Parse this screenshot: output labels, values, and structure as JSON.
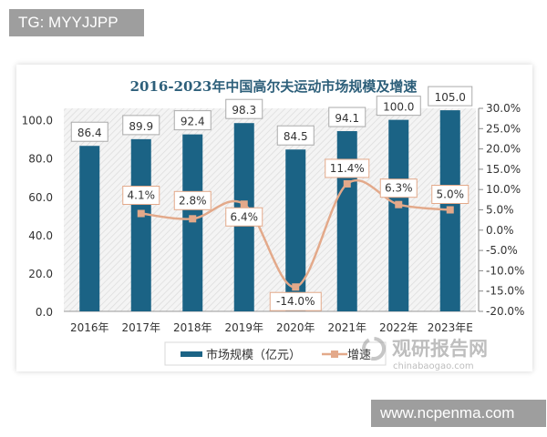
{
  "watermark_top": "TG: MYYJJPP",
  "watermark_bottom": "www.ncpenma.com",
  "brand_logo": {
    "name": "观研报告网",
    "url_text": "chinabaogao.com"
  },
  "colors": {
    "bar": "#1b6385",
    "line": "#e3a98a",
    "title": "#2d5f7a"
  },
  "chart_data": {
    "type": "bar+line",
    "title": "2016-2023年中国高尔夫运动市场规模及增速",
    "categories": [
      "2016年",
      "2017年",
      "2018年",
      "2019年",
      "2020年",
      "2021年",
      "2022年",
      "2023年E"
    ],
    "series": [
      {
        "name": "市场规模（亿元）",
        "type": "bar",
        "axis": "left",
        "values": [
          86.4,
          89.9,
          92.4,
          98.3,
          84.5,
          94.1,
          100.0,
          105.0
        ],
        "labels": [
          "86.4",
          "89.9",
          "92.4",
          "98.3",
          "84.5",
          "94.1",
          "100.0",
          "105.0"
        ]
      },
      {
        "name": "增速",
        "type": "line",
        "axis": "right",
        "values": [
          null,
          4.1,
          2.8,
          6.4,
          -14.0,
          11.4,
          6.3,
          5.0
        ],
        "labels": [
          "",
          "4.1%",
          "2.8%",
          "6.4%",
          "-14.0%",
          "11.4%",
          "6.3%",
          "5.0%"
        ]
      }
    ],
    "y_left": {
      "ylim": [
        0,
        106
      ],
      "ticks": [
        "0.0",
        "20.0",
        "40.0",
        "60.0",
        "80.0",
        "100.0"
      ],
      "tick_values": [
        0,
        20,
        40,
        60,
        80,
        100
      ]
    },
    "y_right": {
      "ylim": [
        -20,
        30
      ],
      "ticks": [
        "-20.0%",
        "-15.0%",
        "-10.0%",
        "-5.0%",
        "0.0%",
        "5.0%",
        "10.0%",
        "15.0%",
        "20.0%",
        "25.0%",
        "30.0%"
      ],
      "tick_values": [
        -20,
        -15,
        -10,
        -5,
        0,
        5,
        10,
        15,
        20,
        25,
        30
      ]
    },
    "legend": "bottom",
    "grid": false
  }
}
